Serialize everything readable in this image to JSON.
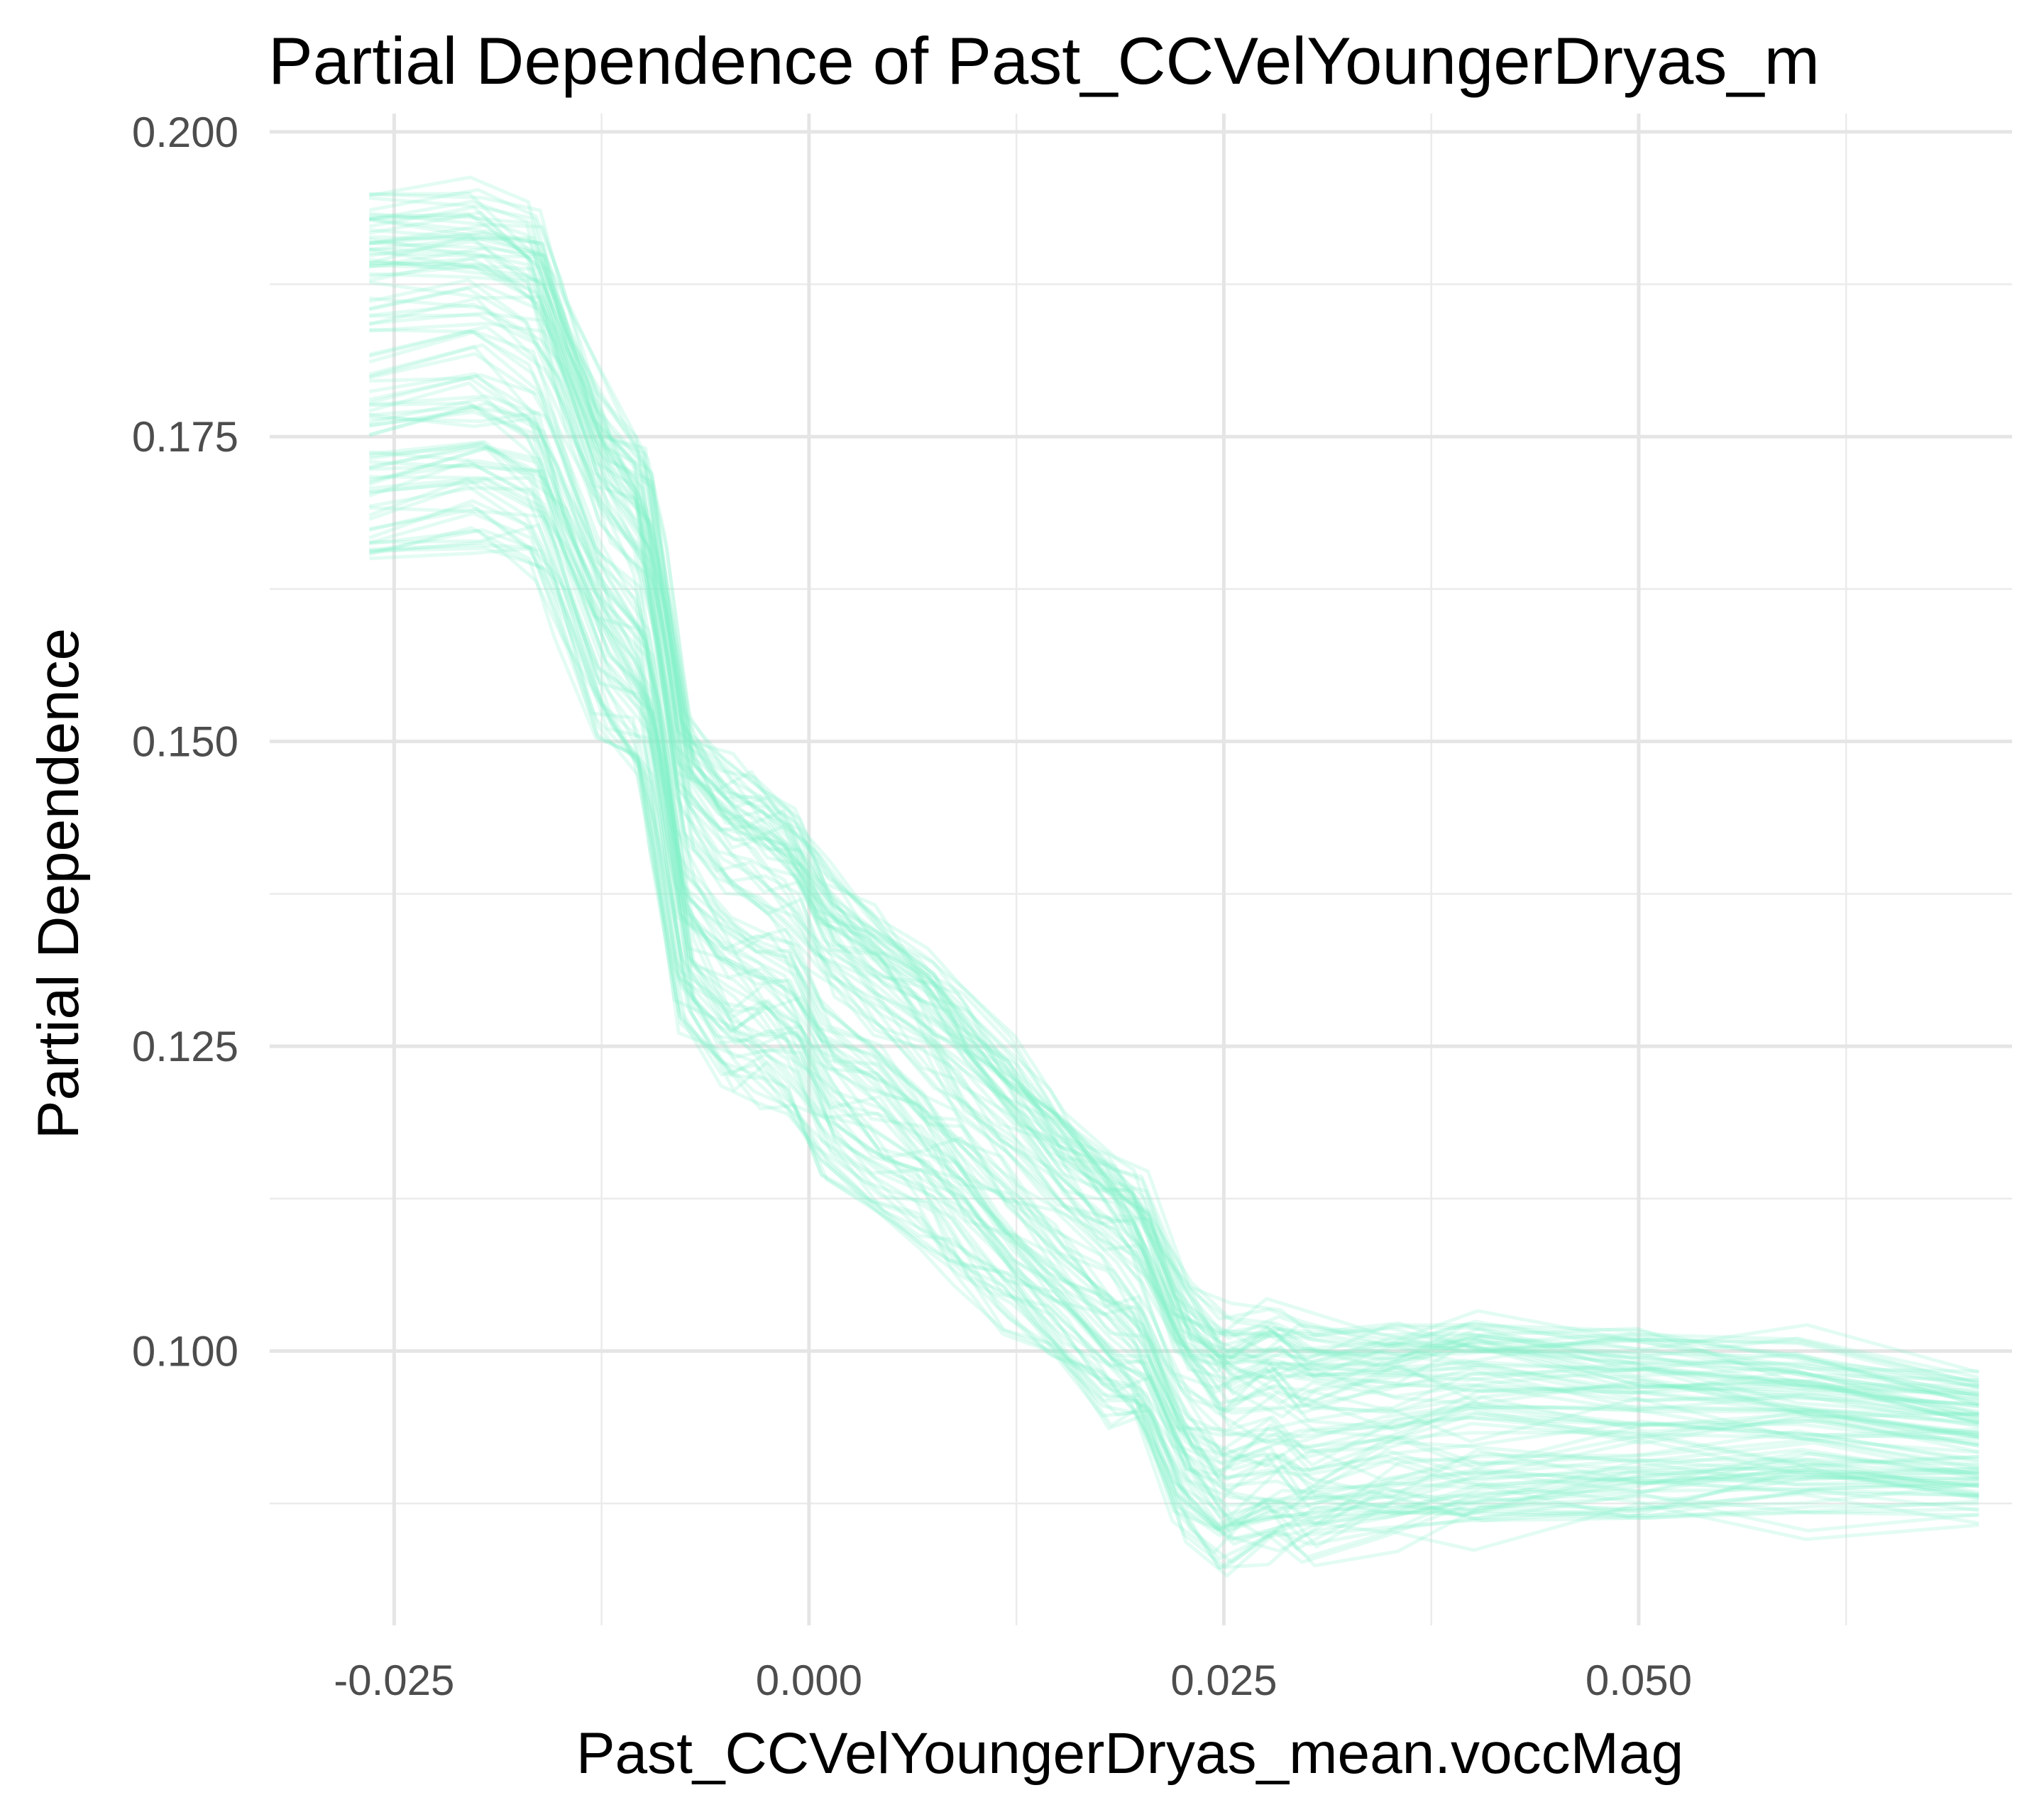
{
  "chart_data": {
    "type": "line",
    "title": "Partial Dependence of Past_CCVelYoungerDryas_m",
    "xlabel": "Past_CCVelYoungerDryas_mean.voccMag",
    "ylabel": "Partial Dependence",
    "xlim": [
      -0.0325,
      0.0725
    ],
    "ylim": [
      0.0775,
      0.2015
    ],
    "x_ticks": [
      -0.025,
      0.0,
      0.025,
      0.05
    ],
    "x_tick_labels": [
      "-0.025",
      "0.000",
      "0.025",
      "0.050"
    ],
    "y_ticks": [
      0.1,
      0.125,
      0.15,
      0.175,
      0.2
    ],
    "y_tick_labels": [
      "0.100",
      "0.125",
      "0.150",
      "0.175",
      "0.200"
    ],
    "grid": true,
    "legend": "none",
    "line_color": "#7FF0C8",
    "line_opacity": 0.22,
    "n_curves": 100,
    "curve_x_range": [
      -0.0265,
      0.0705
    ],
    "mean_curve": {
      "x": [
        -0.0265,
        -0.02,
        -0.0165,
        -0.015,
        -0.0125,
        -0.01,
        -0.009,
        -0.0075,
        -0.005,
        -0.003,
        -0.001,
        0.001,
        0.004,
        0.007,
        0.009,
        0.012,
        0.015,
        0.018,
        0.02,
        0.0225,
        0.025,
        0.028,
        0.03,
        0.035,
        0.04,
        0.05,
        0.06,
        0.0705
      ],
      "y": [
        0.177,
        0.178,
        0.176,
        0.171,
        0.162,
        0.158,
        0.15,
        0.137,
        0.133,
        0.132,
        0.13,
        0.125,
        0.122,
        0.119,
        0.116,
        0.112,
        0.108,
        0.104,
        0.102,
        0.094,
        0.091,
        0.092,
        0.091,
        0.092,
        0.093,
        0.093,
        0.093,
        0.092
      ]
    },
    "curve_offset_at_start": [
      -0.012,
      0.018
    ],
    "curve_offset_at_end": [
      -0.007,
      0.007
    ]
  }
}
